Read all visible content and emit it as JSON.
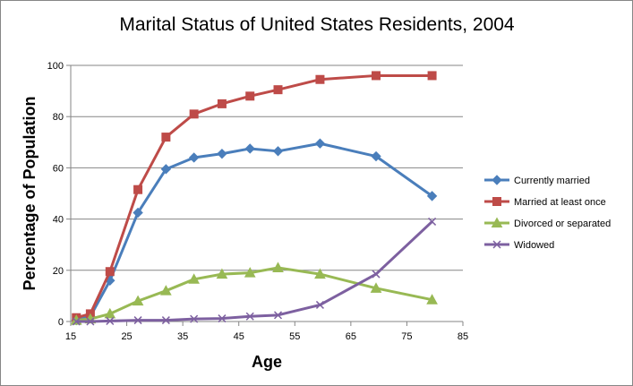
{
  "chart_data": {
    "type": "line",
    "title": "Marital Status of United States Residents, 2004",
    "xlabel": "Age",
    "ylabel": "Percentage of Population",
    "xlim": [
      15,
      85
    ],
    "ylim": [
      0,
      100
    ],
    "xticks": [
      15,
      25,
      35,
      45,
      55,
      65,
      75,
      85
    ],
    "yticks": [
      0,
      20,
      40,
      60,
      80,
      100
    ],
    "grid": "horizontal",
    "legend_position": "right",
    "x": [
      16,
      18.5,
      22,
      27,
      32,
      37,
      42,
      47,
      52,
      59.5,
      69.5,
      79.5
    ],
    "series": [
      {
        "name": "Currently married",
        "color": "#4A7EBB",
        "marker": "diamond",
        "values": [
          0.5,
          2,
          16,
          42.5,
          59.5,
          64,
          65.5,
          67.5,
          66.5,
          69.5,
          64.5,
          49
        ]
      },
      {
        "name": "Married at least once",
        "color": "#BE4B48",
        "marker": "square",
        "values": [
          1.5,
          3,
          19.5,
          51.5,
          72,
          81,
          85,
          88,
          90.5,
          94.5,
          96,
          96
        ]
      },
      {
        "name": "Divorced or separated",
        "color": "#98B954",
        "marker": "triangle",
        "values": [
          0.5,
          1,
          3,
          8,
          12,
          16.5,
          18.5,
          19,
          21,
          18.5,
          13,
          8.5
        ]
      },
      {
        "name": "Widowed",
        "color": "#7D60A0",
        "marker": "x",
        "values": [
          0,
          0,
          0.2,
          0.5,
          0.5,
          1,
          1.2,
          2,
          2.5,
          6.5,
          18.5,
          39
        ]
      }
    ]
  }
}
